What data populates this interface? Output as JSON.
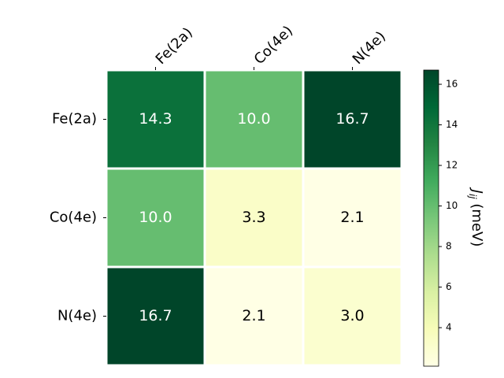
{
  "chart_data": {
    "type": "heatmap",
    "rows": [
      "Fe(2a)",
      "Co(4e)",
      "N(4e)"
    ],
    "columns": [
      "Fe(2a)",
      "Co(4e)",
      "N(4e)"
    ],
    "values": [
      [
        14.3,
        10.0,
        16.7
      ],
      [
        10.0,
        3.3,
        2.1
      ],
      [
        16.7,
        2.1,
        3.0
      ]
    ],
    "value_labels": [
      [
        "14.3",
        "10.0",
        "16.7"
      ],
      [
        "10.0",
        "3.3",
        "2.1"
      ],
      [
        "16.7",
        "2.1",
        "3.0"
      ]
    ],
    "colormap": "YlGn",
    "colorbar_label": {
      "symbol": "J",
      "subscript": "ij",
      "unit": "(meV)"
    },
    "ylim": [
      2.1,
      16.7
    ],
    "yticks": [
      4,
      6,
      8,
      10,
      12,
      14,
      16
    ]
  }
}
